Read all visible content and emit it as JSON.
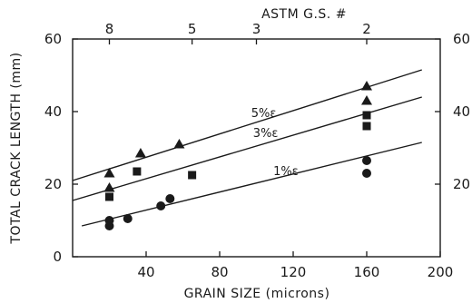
{
  "chart_data": {
    "type": "scatter",
    "title": "",
    "xlabel": "GRAIN SIZE (microns)",
    "ylabel": "TOTAL CRACK LENGTH (mm)",
    "top_axis_label": "ASTM G.S. #",
    "xlim": [
      0,
      200
    ],
    "ylim": [
      0,
      60
    ],
    "x_ticks": [
      40,
      80,
      120,
      160,
      200
    ],
    "y_ticks": [
      0,
      20,
      40,
      60
    ],
    "y_ticks_right": [
      20,
      40,
      60
    ],
    "top_ticks": [
      {
        "x": 20,
        "label": "8"
      },
      {
        "x": 65,
        "label": "5"
      },
      {
        "x": 100,
        "label": "3"
      },
      {
        "x": 160,
        "label": "2"
      }
    ],
    "grid": false,
    "legend": "none",
    "series": [
      {
        "name": "5%ε",
        "marker": "triangle",
        "points": [
          [
            20,
            23
          ],
          [
            20,
            19
          ],
          [
            37,
            28.5
          ],
          [
            58,
            31
          ],
          [
            160,
            47
          ],
          [
            160,
            43
          ]
        ],
        "fit_line": [
          [
            0,
            21
          ],
          [
            190,
            51.5
          ]
        ]
      },
      {
        "name": "3%ε",
        "marker": "square",
        "points": [
          [
            20,
            16.5
          ],
          [
            35,
            23.5
          ],
          [
            65,
            22.5
          ],
          [
            160,
            39
          ],
          [
            160,
            36
          ]
        ],
        "fit_line": [
          [
            0,
            15.5
          ],
          [
            190,
            44
          ]
        ]
      },
      {
        "name": "1%ε",
        "marker": "circle",
        "points": [
          [
            20,
            10
          ],
          [
            20,
            8.5
          ],
          [
            30,
            10.5
          ],
          [
            48,
            14
          ],
          [
            53,
            16
          ],
          [
            160,
            26.5
          ],
          [
            160,
            23
          ]
        ],
        "fit_line": [
          [
            5,
            8.5
          ],
          [
            190,
            31.5
          ]
        ]
      }
    ]
  }
}
